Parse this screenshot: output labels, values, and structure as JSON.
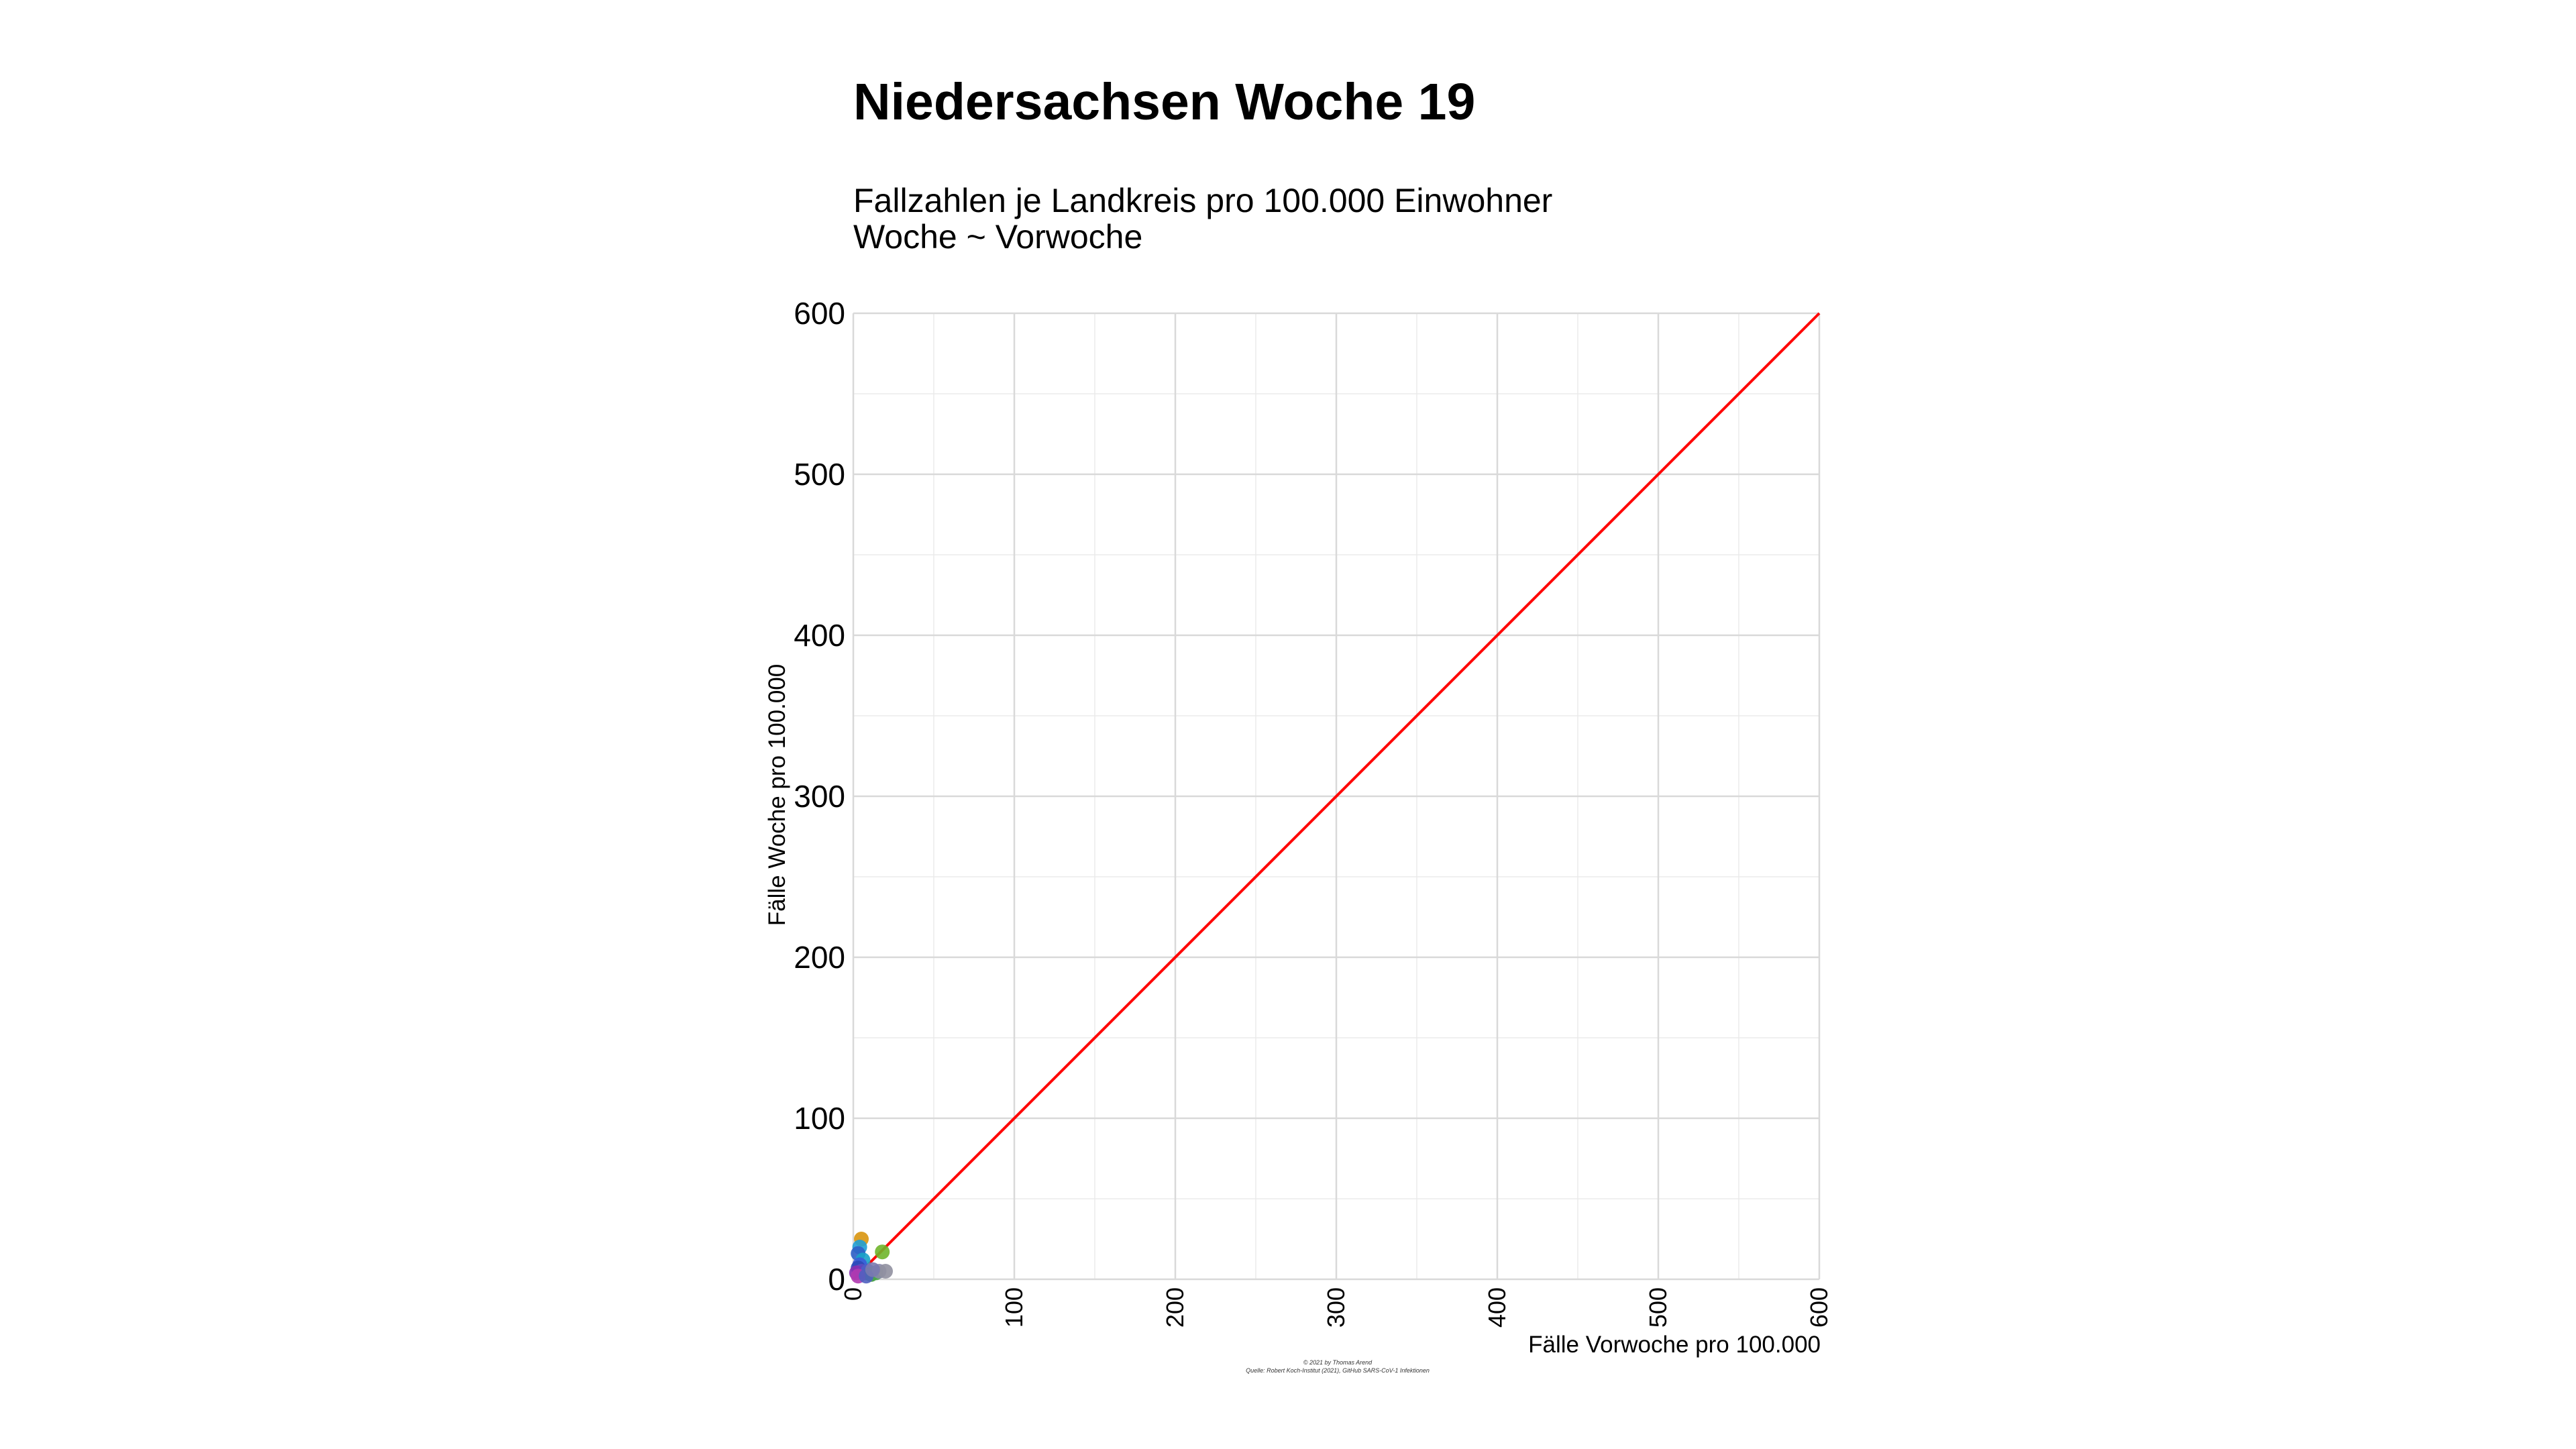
{
  "title": "Niedersachsen Woche 19",
  "subtitle": [
    "Fallzahlen je Landkreis pro 100.000 Einwohner",
    "Woche ~ Vorwoche"
  ],
  "caption": [
    "© 2021 by Thomas Arend",
    "Quelle: Robert Koch-Institut (2021), GitHub SARS-CoV-1 Infektionen"
  ],
  "chart_data": {
    "type": "scatter",
    "title": "Niedersachsen Woche 19",
    "xlabel": "Fälle Vorwoche pro 100.000",
    "ylabel": "Fälle Woche pro 100.000",
    "xlim": [
      0,
      600
    ],
    "ylim": [
      0,
      600
    ],
    "x_ticks": [
      "0",
      "100",
      "200",
      "300",
      "400",
      "500",
      "600"
    ],
    "y_ticks": [
      "0",
      "100",
      "200",
      "300",
      "400",
      "500",
      "600"
    ],
    "grid": true,
    "reference_line": {
      "x": [
        0,
        600
      ],
      "y": [
        0,
        600
      ],
      "color": "#ff0000"
    },
    "points": [
      {
        "x": 5,
        "y": 25,
        "color": "#d8950e"
      },
      {
        "x": 18,
        "y": 17,
        "color": "#6fb52a"
      },
      {
        "x": 4,
        "y": 20,
        "color": "#1f9fd6"
      },
      {
        "x": 3,
        "y": 16,
        "color": "#2f5fc7"
      },
      {
        "x": 6,
        "y": 12,
        "color": "#1aa3c8"
      },
      {
        "x": 4,
        "y": 9,
        "color": "#3b5bd9"
      },
      {
        "x": 3,
        "y": 7,
        "color": "#2c49b8"
      },
      {
        "x": 5,
        "y": 5,
        "color": "#5b4fc2"
      },
      {
        "x": 2,
        "y": 4,
        "color": "#8a2fb0"
      },
      {
        "x": 7,
        "y": 4,
        "color": "#6a3fb8"
      },
      {
        "x": 9,
        "y": 5,
        "color": "#4a60c9"
      },
      {
        "x": 11,
        "y": 3,
        "color": "#3a9a3a"
      },
      {
        "x": 14,
        "y": 4,
        "color": "#4aa84a"
      },
      {
        "x": 16,
        "y": 5,
        "color": "#8888aa"
      },
      {
        "x": 20,
        "y": 5,
        "color": "#9090a0"
      },
      {
        "x": 3,
        "y": 2,
        "color": "#b03ab0"
      },
      {
        "x": 8,
        "y": 2,
        "color": "#5060c0"
      },
      {
        "x": 12,
        "y": 6,
        "color": "#7a7ab0"
      }
    ]
  }
}
